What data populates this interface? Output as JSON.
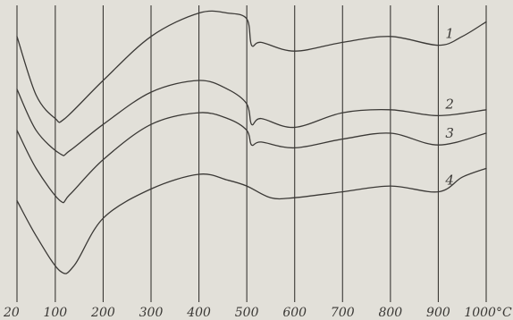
{
  "chart_data": {
    "type": "line",
    "title": "",
    "xlabel": "",
    "ylabel": "",
    "x_unit": "°C",
    "xlim": [
      20,
      1000
    ],
    "x_ticks": [
      {
        "value": 20,
        "label": "20"
      },
      {
        "value": 100,
        "label": "100"
      },
      {
        "value": 200,
        "label": "200"
      },
      {
        "value": 300,
        "label": "300"
      },
      {
        "value": 400,
        "label": "400"
      },
      {
        "value": 500,
        "label": "500"
      },
      {
        "value": 600,
        "label": "600"
      },
      {
        "value": 700,
        "label": "700"
      },
      {
        "value": 800,
        "label": "800"
      },
      {
        "value": 900,
        "label": "900"
      },
      {
        "value": 1000,
        "label": "1000°C"
      }
    ],
    "y_axis": "unlabeled relative signal (higher = up)",
    "ylim": [
      0,
      100
    ],
    "grid": "vertical lines at each x tick",
    "series": [
      {
        "name": "1",
        "points": [
          [
            20,
            90
          ],
          [
            60,
            70
          ],
          [
            100,
            62
          ],
          [
            120,
            62
          ],
          [
            200,
            75
          ],
          [
            300,
            90
          ],
          [
            400,
            98
          ],
          [
            460,
            98
          ],
          [
            500,
            96
          ],
          [
            510,
            87
          ],
          [
            530,
            88
          ],
          [
            600,
            85
          ],
          [
            700,
            88
          ],
          [
            800,
            90
          ],
          [
            900,
            87
          ],
          [
            950,
            90
          ],
          [
            1000,
            95
          ]
        ]
      },
      {
        "name": "2",
        "points": [
          [
            20,
            72
          ],
          [
            60,
            58
          ],
          [
            110,
            50
          ],
          [
            130,
            51
          ],
          [
            200,
            60
          ],
          [
            300,
            71
          ],
          [
            400,
            75
          ],
          [
            460,
            72
          ],
          [
            500,
            67
          ],
          [
            510,
            60
          ],
          [
            530,
            62
          ],
          [
            600,
            59
          ],
          [
            700,
            64
          ],
          [
            800,
            65
          ],
          [
            900,
            63
          ],
          [
            1000,
            65
          ]
        ]
      },
      {
        "name": "3",
        "points": [
          [
            20,
            58
          ],
          [
            60,
            45
          ],
          [
            110,
            34
          ],
          [
            130,
            36
          ],
          [
            200,
            48
          ],
          [
            300,
            60
          ],
          [
            400,
            64
          ],
          [
            460,
            62
          ],
          [
            500,
            58
          ],
          [
            510,
            53
          ],
          [
            530,
            54
          ],
          [
            600,
            52
          ],
          [
            700,
            55
          ],
          [
            800,
            57
          ],
          [
            900,
            53
          ],
          [
            1000,
            57
          ]
        ]
      },
      {
        "name": "4",
        "points": [
          [
            20,
            34
          ],
          [
            60,
            22
          ],
          [
            110,
            10
          ],
          [
            140,
            12
          ],
          [
            200,
            28
          ],
          [
            300,
            38
          ],
          [
            400,
            43
          ],
          [
            460,
            41
          ],
          [
            500,
            39
          ],
          [
            550,
            35
          ],
          [
            600,
            35
          ],
          [
            700,
            37
          ],
          [
            800,
            39
          ],
          [
            900,
            37
          ],
          [
            950,
            42
          ],
          [
            1000,
            45
          ]
        ]
      }
    ]
  }
}
